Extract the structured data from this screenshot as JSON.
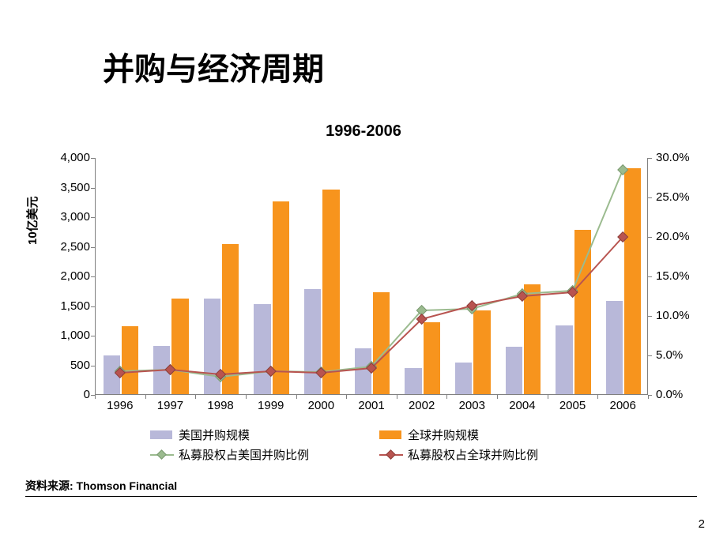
{
  "title": "并购与经济周期",
  "subtitle": "1996-2006",
  "y_axis_left_label": "10亿美元",
  "source_text": "资料来源: Thomson Financial",
  "page_number": "2",
  "chart": {
    "type": "bar+line",
    "background_color": "#ffffff",
    "axis_color": "#808080",
    "categories": [
      "1996",
      "1997",
      "1998",
      "1999",
      "2000",
      "2001",
      "2002",
      "2003",
      "2004",
      "2005",
      "2006"
    ],
    "y_left": {
      "min": 0,
      "max": 4000,
      "step": 500,
      "ticks": [
        "0",
        "500",
        "1,000",
        "1,500",
        "2,000",
        "2,500",
        "3,000",
        "3,500",
        "4,000"
      ]
    },
    "y_right": {
      "min": 0,
      "max": 30,
      "step": 5,
      "ticks": [
        "0.0%",
        "5.0%",
        "10.0%",
        "15.0%",
        "20.0%",
        "25.0%",
        "30.0%"
      ]
    },
    "bar_series": [
      {
        "name": "美国并购规模",
        "color": "#b8b8d9",
        "values": [
          650,
          820,
          1620,
          1520,
          1770,
          780,
          440,
          530,
          800,
          1160,
          1570
        ]
      },
      {
        "name": "全球并购规模",
        "color": "#f7941d",
        "values": [
          1150,
          1610,
          2530,
          3250,
          3460,
          1720,
          1220,
          1420,
          1850,
          2780,
          3820
        ]
      }
    ],
    "line_series": [
      {
        "name": "私募股权占美国并购比例",
        "color": "#9bbb8f",
        "marker_color": "#9bbb8f",
        "marker_border": "#7a9970",
        "values": [
          3.0,
          3.2,
          2.3,
          3.0,
          2.9,
          3.6,
          10.7,
          10.9,
          12.8,
          13.2,
          28.5
        ]
      },
      {
        "name": "私募股权占全球并购比例",
        "color": "#b85450",
        "marker_color": "#b85450",
        "marker_border": "#8c3e3a",
        "values": [
          2.8,
          3.2,
          2.6,
          3.0,
          2.8,
          3.4,
          9.6,
          11.3,
          12.5,
          13.0,
          20.0
        ]
      }
    ],
    "bar_group_width": 0.7,
    "bar_gap": 0.03,
    "font_size_ticks": 15,
    "font_size_title": 40,
    "font_size_subtitle": 20
  },
  "legend": {
    "items": [
      {
        "type": "swatch",
        "label": "美国并购规模",
        "color": "#b8b8d9"
      },
      {
        "type": "swatch",
        "label": "全球并购规模",
        "color": "#f7941d"
      },
      {
        "type": "line",
        "label": "私募股权占美国并购比例",
        "color": "#9bbb8f"
      },
      {
        "type": "line",
        "label": "私募股权占全球并购比例",
        "color": "#b85450"
      }
    ]
  }
}
